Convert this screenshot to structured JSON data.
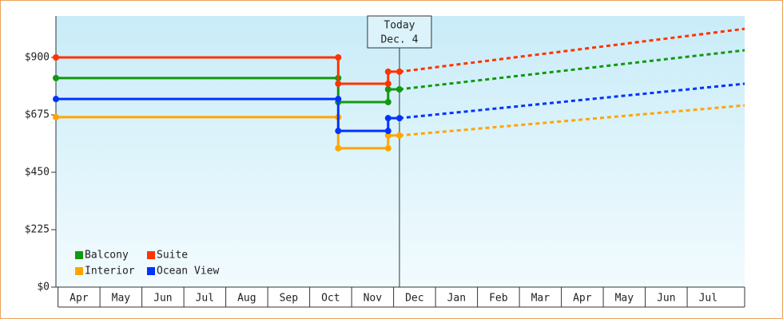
{
  "chart_data": {
    "type": "line",
    "xlim": [
      -0.05,
      16.37
    ],
    "ylim": [
      0,
      1062.5
    ],
    "yticks": [
      {
        "value": 0,
        "label": "$0"
      },
      {
        "value": 225,
        "label": "$225"
      },
      {
        "value": 450,
        "label": "$450"
      },
      {
        "value": 675,
        "label": "$675"
      },
      {
        "value": 900,
        "label": "$900"
      }
    ],
    "xticks": [
      {
        "value": 0.5,
        "label": "Apr"
      },
      {
        "value": 1.5,
        "label": "May"
      },
      {
        "value": 2.5,
        "label": "Jun"
      },
      {
        "value": 3.5,
        "label": "Jul"
      },
      {
        "value": 4.5,
        "label": "Aug"
      },
      {
        "value": 5.5,
        "label": "Sep"
      },
      {
        "value": 6.5,
        "label": "Oct"
      },
      {
        "value": 7.5,
        "label": "Nov"
      },
      {
        "value": 8.5,
        "label": "Dec"
      },
      {
        "value": 9.5,
        "label": "Jan"
      },
      {
        "value": 10.5,
        "label": "Feb"
      },
      {
        "value": 11.5,
        "label": "Mar"
      },
      {
        "value": 12.5,
        "label": "Apr"
      },
      {
        "value": 13.5,
        "label": "May"
      },
      {
        "value": 14.5,
        "label": "Jun"
      },
      {
        "value": 15.5,
        "label": "Jul"
      }
    ],
    "today": {
      "x": 8.14,
      "label": [
        "Today",
        "Dec. 4"
      ]
    },
    "x": [
      -0.05,
      6.68,
      6.68,
      7.87,
      7.87,
      8.14
    ],
    "forecast_x": [
      8.14,
      16.37
    ],
    "legend": "lower left",
    "series": [
      {
        "name": "Balcony",
        "color": "#119911",
        "values": [
          819,
          819,
          725,
          725,
          775,
          775
        ],
        "forecast_values": [
          775,
          928
        ]
      },
      {
        "name": "Suite",
        "color": "#ff3300",
        "values": [
          900,
          900,
          797,
          797,
          844,
          844
        ],
        "forecast_values": [
          844,
          1012
        ]
      },
      {
        "name": "Interior",
        "color": "#ffa500",
        "values": [
          666,
          666,
          544,
          544,
          594,
          594
        ],
        "forecast_values": [
          594,
          712
        ]
      },
      {
        "name": "Ocean View",
        "color": "#0033ff",
        "values": [
          737,
          737,
          612,
          612,
          662,
          662
        ],
        "forecast_values": [
          662,
          797
        ]
      }
    ]
  }
}
